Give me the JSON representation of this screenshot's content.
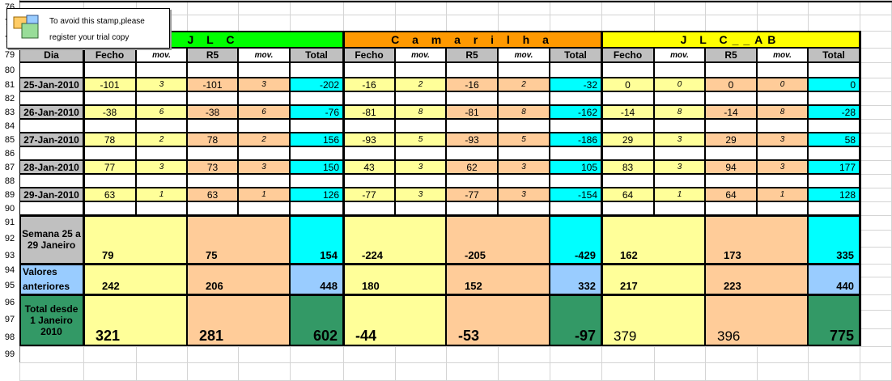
{
  "stamp": {
    "line1": "To avoid this stamp,please",
    "line2": "register your trial copy"
  },
  "row_numbers": [
    "76",
    "77",
    "78",
    "79",
    "80",
    "81",
    "82",
    "83",
    "84",
    "85",
    "86",
    "87",
    "88",
    "89",
    "90",
    "91",
    "92",
    "93",
    "94",
    "95",
    "96",
    "97",
    "98",
    "99"
  ],
  "groups": [
    {
      "name": "J L C",
      "color": "#00ff00"
    },
    {
      "name": "C a m a r i l h a",
      "color": "#ff9900"
    },
    {
      "name": "J L C__AB",
      "color": "#ffff00"
    }
  ],
  "subheaders": {
    "dia": "Dia",
    "fecho": "Fecho",
    "mov": "mov.",
    "r5": "R5",
    "total": "Total"
  },
  "daily": [
    {
      "date": "25-Jan-2010",
      "values": [
        "-101",
        "3",
        "-101",
        "3",
        "-202",
        "-16",
        "2",
        "-16",
        "2",
        "-32",
        "0",
        "0",
        "0",
        "0",
        "0"
      ]
    },
    {
      "date": "26-Jan-2010",
      "values": [
        "-38",
        "6",
        "-38",
        "6",
        "-76",
        "-81",
        "8",
        "-81",
        "8",
        "-162",
        "-14",
        "8",
        "-14",
        "8",
        "-28"
      ]
    },
    {
      "date": "27-Jan-2010",
      "values": [
        "78",
        "2",
        "78",
        "2",
        "156",
        "-93",
        "5",
        "-93",
        "5",
        "-186",
        "29",
        "3",
        "29",
        "3",
        "58"
      ]
    },
    {
      "date": "28-Jan-2010",
      "values": [
        "77",
        "3",
        "73",
        "3",
        "150",
        "43",
        "3",
        "62",
        "3",
        "105",
        "83",
        "3",
        "94",
        "3",
        "177"
      ]
    },
    {
      "date": "29-Jan-2010",
      "values": [
        "63",
        "1",
        "63",
        "1",
        "126",
        "-77",
        "3",
        "-77",
        "3",
        "-154",
        "64",
        "1",
        "64",
        "1",
        "128"
      ]
    }
  ],
  "semana": {
    "label": "Semana 25 a 29 Janeiro",
    "values": [
      "79",
      "75",
      "154",
      "-224",
      "-205",
      "-429",
      "162",
      "173",
      "335"
    ]
  },
  "anteriores": {
    "label_line1": "Valores",
    "label_line2": "anteriores",
    "values": [
      "242",
      "206",
      "448",
      "180",
      "152",
      "332",
      "217",
      "223",
      "440"
    ]
  },
  "total_desde": {
    "label": "Total desde 1 Janeiro 2010",
    "values": [
      "321",
      "281",
      "602",
      "-44",
      "-53",
      "-97",
      "379",
      "396",
      "775"
    ]
  },
  "colors": {
    "fecho": "#ffff99",
    "r5": "#ffcc99",
    "total": "#00ffff",
    "anteriores_label": "#99ccff",
    "anteriores_total": "#99ccff",
    "desde_label": "#339966",
    "desde_total": "#339966",
    "subheader": "#c0c0c0"
  }
}
